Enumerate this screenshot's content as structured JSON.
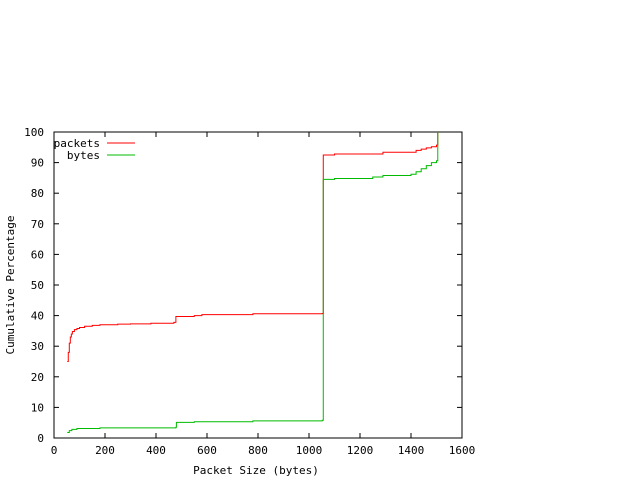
{
  "chart_data": {
    "type": "line",
    "title": "",
    "xlabel": "Packet Size (bytes)",
    "ylabel": "Cumulative Percentage",
    "xlim": [
      0,
      1600
    ],
    "ylim": [
      0,
      100
    ],
    "xticks": [
      "0",
      "200",
      "400",
      "600",
      "800",
      "1000",
      "1200",
      "1400",
      "1600"
    ],
    "yticks": [
      "0",
      "10",
      "20",
      "30",
      "40",
      "50",
      "60",
      "70",
      "80",
      "90",
      "100"
    ],
    "grid": false,
    "legend_position": "top-left",
    "series": [
      {
        "name": "packets",
        "color": "#ff0000",
        "step": true,
        "points": [
          [
            52,
            25
          ],
          [
            56,
            28
          ],
          [
            60,
            31
          ],
          [
            64,
            33
          ],
          [
            68,
            34
          ],
          [
            72,
            34.8
          ],
          [
            80,
            35.4
          ],
          [
            90,
            35.8
          ],
          [
            100,
            36.1
          ],
          [
            120,
            36.5
          ],
          [
            150,
            36.8
          ],
          [
            180,
            37.0
          ],
          [
            250,
            37.2
          ],
          [
            300,
            37.3
          ],
          [
            380,
            37.5
          ],
          [
            470,
            37.8
          ],
          [
            478,
            39.7
          ],
          [
            550,
            40.0
          ],
          [
            580,
            40.3
          ],
          [
            780,
            40.6
          ],
          [
            1052,
            40.7
          ],
          [
            1056,
            92.5
          ],
          [
            1100,
            92.8
          ],
          [
            1290,
            93.4
          ],
          [
            1420,
            94.0
          ],
          [
            1440,
            94.4
          ],
          [
            1460,
            94.8
          ],
          [
            1480,
            95.2
          ],
          [
            1500,
            95.7
          ],
          [
            1505,
            100
          ]
        ]
      },
      {
        "name": "bytes",
        "color": "#00bb00",
        "step": true,
        "points": [
          [
            52,
            1.8
          ],
          [
            60,
            2.4
          ],
          [
            70,
            2.8
          ],
          [
            90,
            3.1
          ],
          [
            180,
            3.3
          ],
          [
            478,
            3.5
          ],
          [
            480,
            5.1
          ],
          [
            550,
            5.3
          ],
          [
            780,
            5.6
          ],
          [
            1052,
            5.8
          ],
          [
            1056,
            84.5
          ],
          [
            1100,
            84.8
          ],
          [
            1250,
            85.3
          ],
          [
            1290,
            85.8
          ],
          [
            1400,
            86.2
          ],
          [
            1420,
            87.0
          ],
          [
            1440,
            88.0
          ],
          [
            1460,
            89.0
          ],
          [
            1480,
            90.0
          ],
          [
            1500,
            90.6
          ],
          [
            1505,
            100
          ]
        ]
      }
    ]
  }
}
